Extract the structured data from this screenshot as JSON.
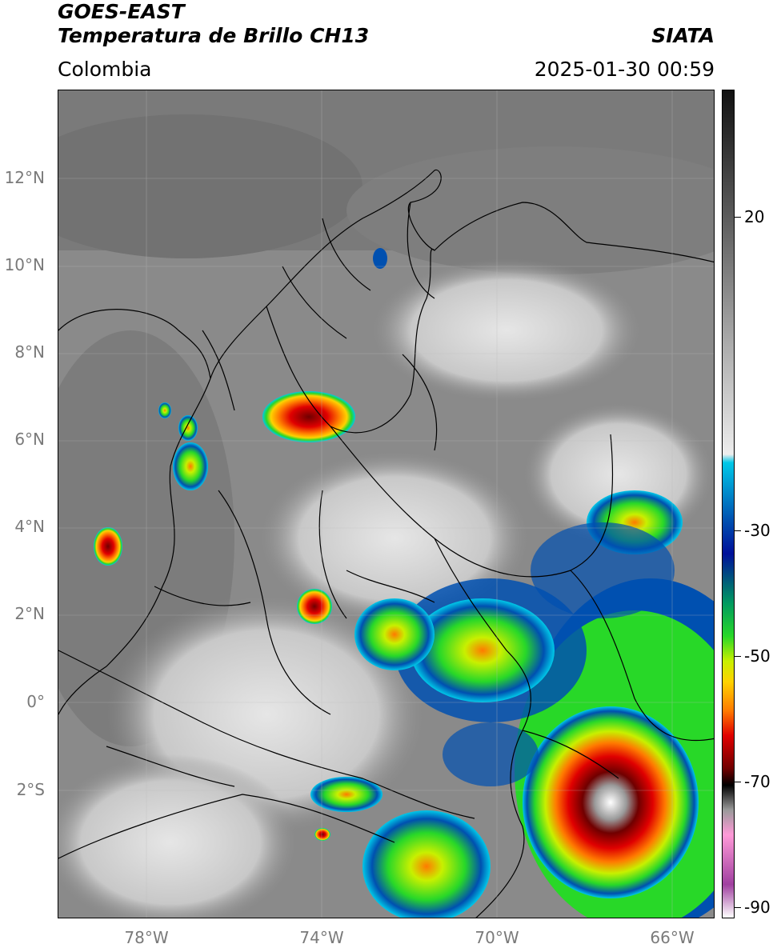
{
  "header": {
    "title_line1": "GOES-EAST",
    "title_line2": "Temperatura de Brillo CH13",
    "agency": "SIATA",
    "region": "Colombia",
    "datetime": "2025-01-30 00:59"
  },
  "map": {
    "lat_labels": [
      "12°N",
      "10°N",
      "8°N",
      "6°N",
      "4°N",
      "2°N",
      "0°",
      "2°S"
    ],
    "lon_labels": [
      "78°W",
      "74°W",
      "70°W",
      "66°W"
    ],
    "background_color": "#8a8a8a"
  },
  "colorbar": {
    "labels": [
      "20",
      "-30",
      "-50",
      "-70",
      "-90"
    ],
    "colors": [
      "#111111",
      "#5a5a5a",
      "#a8a8a8",
      "#ededed",
      "#00c8e8",
      "#0050b0",
      "#00109a",
      "#009a60",
      "#28d828",
      "#c8f000",
      "#ffd200",
      "#ff7a00",
      "#e00000",
      "#700000",
      "#000000",
      "#9a9a9a",
      "#ff9ad8",
      "#a040a0",
      "#ffffff"
    ]
  }
}
